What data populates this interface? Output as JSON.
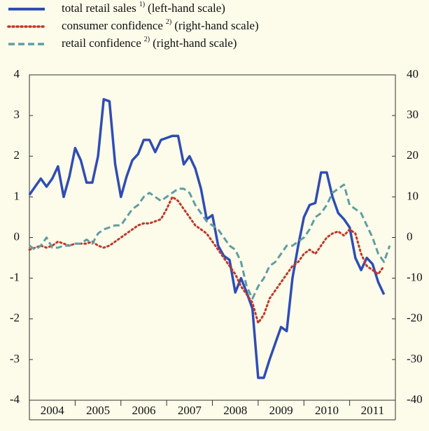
{
  "chart_data": {
    "type": "line",
    "x": [
      2004,
      2004.125,
      2004.25,
      2004.375,
      2004.5,
      2004.625,
      2004.75,
      2004.875,
      2005,
      2005.125,
      2005.25,
      2005.375,
      2005.5,
      2005.625,
      2005.75,
      2005.875,
      2006,
      2006.125,
      2006.25,
      2006.375,
      2006.5,
      2006.625,
      2006.75,
      2006.875,
      2007,
      2007.125,
      2007.25,
      2007.375,
      2007.5,
      2007.625,
      2007.75,
      2007.875,
      2008,
      2008.125,
      2008.25,
      2008.375,
      2008.5,
      2008.625,
      2008.75,
      2008.875,
      2009,
      2009.125,
      2009.25,
      2009.375,
      2009.5,
      2009.625,
      2009.75,
      2009.875,
      2010,
      2010.125,
      2010.25,
      2010.375,
      2010.5,
      2010.625,
      2010.75,
      2010.875,
      2011,
      2011.125,
      2011.25,
      2011.375,
      2011.5,
      2011.625,
      2011.75,
      2011.875
    ],
    "series": [
      {
        "name": "total retail sales",
        "footnote": "1)",
        "scale_label": "(left-hand scale)",
        "color": "#2f4db5",
        "style": "solid",
        "axis": "y",
        "values": [
          1.05,
          1.25,
          1.45,
          1.25,
          1.45,
          1.75,
          1.0,
          1.5,
          2.2,
          1.9,
          1.35,
          1.35,
          2.0,
          3.4,
          3.35,
          1.8,
          1.0,
          1.5,
          1.9,
          2.05,
          2.4,
          2.4,
          2.1,
          2.4,
          2.45,
          2.5,
          2.5,
          1.8,
          2.0,
          1.7,
          1.2,
          0.45,
          0.55,
          -0.2,
          -0.45,
          -0.55,
          -1.35,
          -1.0,
          -1.35,
          -1.75,
          -3.45,
          -3.45,
          -3.0,
          -2.6,
          -2.2,
          -2.3,
          -1.0,
          -0.2,
          0.5,
          0.8,
          0.85,
          1.6,
          1.6,
          1.0,
          0.6,
          0.45,
          0.25,
          -0.5,
          -0.8,
          -0.5,
          -0.65,
          -1.1,
          -1.4,
          null
        ]
      },
      {
        "name": "consumer confidence",
        "footnote": "2)",
        "scale_label": "(right-hand scale)",
        "color": "#c0392b",
        "style": "dotted",
        "axis": "y2",
        "values": [
          -3,
          -2.5,
          -2,
          -2.5,
          -2,
          -1,
          -1.5,
          -2,
          -1.5,
          -1.5,
          -1.5,
          -1,
          -2,
          -2.5,
          -2,
          -1,
          0,
          1,
          2,
          3,
          3.5,
          3.5,
          4,
          4.5,
          7,
          10,
          9,
          7,
          5,
          3,
          2,
          1,
          -1,
          -3,
          -5,
          -7,
          -9,
          -12,
          -14,
          -16,
          -21,
          -19,
          -15,
          -13,
          -11,
          -9,
          -7,
          -6,
          -4,
          -3,
          -4,
          -2,
          0,
          1,
          1.5,
          0.5,
          2,
          1,
          -4,
          -7,
          -8,
          -9,
          -7,
          null
        ]
      },
      {
        "name": "retail confidence",
        "footnote": "2)",
        "scale_label": "(right-hand scale)",
        "color": "#5f9ea3",
        "style": "dashed",
        "axis": "y2",
        "values": [
          -2,
          -3,
          -2,
          0,
          -2.5,
          -2.5,
          -2,
          -2,
          -1.5,
          -1.5,
          -0.5,
          -1.5,
          1,
          2,
          2.5,
          3,
          3,
          5,
          7,
          8,
          10,
          11,
          10,
          9,
          10,
          11,
          12,
          12,
          11,
          8,
          6,
          4,
          3,
          2,
          0,
          -2,
          -3,
          -6,
          -12,
          -15,
          -12,
          -10,
          -7,
          -6,
          -4,
          -2,
          -2,
          -1,
          0,
          2,
          5,
          6,
          8,
          11,
          12,
          13,
          8,
          7,
          6,
          3,
          0,
          -4,
          -6,
          -2
        ]
      }
    ],
    "xlim": [
      2004,
      2012
    ],
    "xticks": [
      {
        "value": 2004.5,
        "label": "2004"
      },
      {
        "value": 2005.5,
        "label": "2005"
      },
      {
        "value": 2006.5,
        "label": "2006"
      },
      {
        "value": 2007.5,
        "label": "2007"
      },
      {
        "value": 2008.5,
        "label": "2008"
      },
      {
        "value": 2009.5,
        "label": "2009"
      },
      {
        "value": 2010.5,
        "label": "2010"
      },
      {
        "value": 2011.5,
        "label": "2011"
      }
    ],
    "ylim": [
      -4,
      4
    ],
    "yticks": [
      -4,
      -3,
      -2,
      -1,
      0,
      1,
      2,
      3,
      4
    ],
    "y2lim": [
      -40,
      40
    ],
    "y2ticks": [
      -40,
      -30,
      -20,
      -10,
      0,
      10,
      20,
      30,
      40
    ],
    "grid": false
  }
}
